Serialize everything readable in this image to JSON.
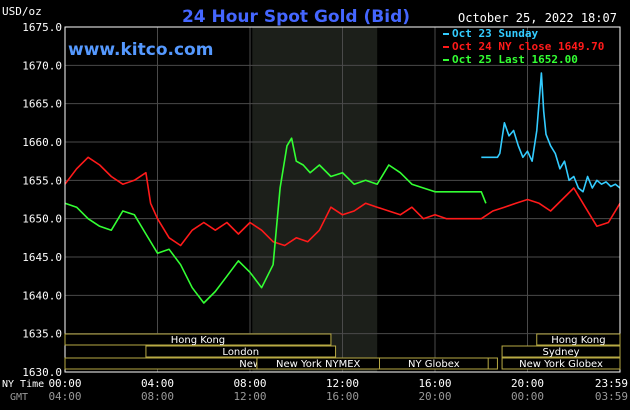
{
  "header": {
    "unit": "USD/oz",
    "title": "24 Hour Spot Gold (Bid)",
    "timestamp": "October 25, 2022 18:07",
    "website": "www.kitco.com"
  },
  "legend": [
    {
      "label": "Oct 23 Sunday",
      "color": "#33ccff"
    },
    {
      "label": "Oct 24 NY close 1649.70",
      "color": "#ff1a1a"
    },
    {
      "label": "Oct 25 Last 1652.00",
      "color": "#33ff33"
    }
  ],
  "colors": {
    "background": "#000000",
    "grid": "#4a4a4a",
    "axis_text": "#ffffff",
    "title": "#4466ff",
    "website": "#5599ff",
    "session_fill": "#1c1f1a",
    "session_border": "#b8aa44",
    "session_text": "#ffffff"
  },
  "time_rows": {
    "ny_label": "NY Time",
    "gmt_label": "GMT",
    "ny_ticks": [
      "00:00",
      "04:00",
      "08:00",
      "12:00",
      "16:00",
      "20:00",
      "23:59"
    ],
    "gmt_ticks": [
      "04:00",
      "08:00",
      "12:00",
      "16:00",
      "20:00",
      "00:00",
      "03:59"
    ]
  },
  "sessions": [
    {
      "label": "Hong Kong",
      "start": 0,
      "end": 11.5,
      "row": 0
    },
    {
      "label": "London",
      "start": 3.5,
      "end": 11.7,
      "row": 1
    },
    {
      "label": "New York Globex",
      "start": 0,
      "end": 18.7,
      "row": 2
    },
    {
      "label": "New York NYMEX",
      "start": 8.3,
      "end": 13.6,
      "row": 2
    },
    {
      "label": "NY Globex",
      "start": 13.6,
      "end": 18.3,
      "row": 2
    },
    {
      "label": "Hong Kong",
      "start": 20.4,
      "end": 24,
      "row": 0
    },
    {
      "label": "Sydney",
      "start": 18.9,
      "end": 24,
      "row": 1
    },
    {
      "label": "New York Globex",
      "start": 18.9,
      "end": 24,
      "row": 2
    }
  ],
  "chart_data": {
    "type": "line",
    "title": "24 Hour Spot Gold (Bid)",
    "ylabel": "USD/oz",
    "xlabel": "NY Time",
    "xlim": [
      0,
      24
    ],
    "ylim": [
      1630,
      1675
    ],
    "yticks": [
      "1675.0",
      "1670.0",
      "1665.0",
      "1660.0",
      "1655.0",
      "1650.0",
      "1645.0",
      "1640.0",
      "1635.0",
      "1630.0"
    ],
    "grid": true,
    "legend_position": "top-right",
    "shaded_region": [
      8.1,
      13.5
    ],
    "series": [
      {
        "name": "Oct 23 Sunday",
        "color": "#33ccff",
        "x": [
          18.0,
          18.7,
          18.8,
          19.0,
          19.2,
          19.4,
          19.6,
          19.8,
          20.0,
          20.2,
          20.4,
          20.6,
          20.7,
          20.8,
          21.0,
          21.2,
          21.4,
          21.6,
          21.8,
          22.0,
          22.2,
          22.4,
          22.6,
          22.8,
          23.0,
          23.2,
          23.4,
          23.6,
          23.8,
          24.0
        ],
        "y": [
          1658.0,
          1658.0,
          1658.5,
          1662.5,
          1660.8,
          1661.5,
          1659.5,
          1658.0,
          1658.8,
          1657.5,
          1661.5,
          1669.0,
          1664.0,
          1661.0,
          1659.5,
          1658.5,
          1656.5,
          1657.5,
          1655.0,
          1655.5,
          1654.0,
          1653.5,
          1655.5,
          1654.0,
          1655.0,
          1654.5,
          1654.8,
          1654.2,
          1654.5,
          1654.0
        ]
      },
      {
        "name": "Oct 24 NY close 1649.70",
        "color": "#ff1a1a",
        "x": [
          0.0,
          0.5,
          1.0,
          1.5,
          2.0,
          2.5,
          3.0,
          3.5,
          3.7,
          4.0,
          4.5,
          5.0,
          5.5,
          6.0,
          6.5,
          7.0,
          7.5,
          8.0,
          8.5,
          9.0,
          9.5,
          10.0,
          10.5,
          11.0,
          11.5,
          12.0,
          12.5,
          13.0,
          13.5,
          14.0,
          14.5,
          15.0,
          15.5,
          16.0,
          16.5,
          17.0,
          17.5,
          18.0,
          18.5,
          19.0,
          19.5,
          20.0,
          20.5,
          21.0,
          21.5,
          22.0,
          22.5,
          23.0,
          23.5,
          24.0
        ],
        "y": [
          1654.5,
          1656.5,
          1658.0,
          1657.0,
          1655.5,
          1654.5,
          1655.0,
          1656.0,
          1652.0,
          1650.0,
          1647.5,
          1646.5,
          1648.5,
          1649.5,
          1648.5,
          1649.5,
          1648.0,
          1649.5,
          1648.5,
          1647.0,
          1646.5,
          1647.5,
          1647.0,
          1648.5,
          1651.5,
          1650.5,
          1651.0,
          1652.0,
          1651.5,
          1651.0,
          1650.5,
          1651.5,
          1650.0,
          1650.5,
          1650.0,
          1650.0,
          1650.0,
          1650.0,
          1651.0,
          1651.5,
          1652.0,
          1652.5,
          1652.0,
          1651.0,
          1652.5,
          1654.0,
          1651.5,
          1649.0,
          1649.5,
          1652.0
        ]
      },
      {
        "name": "Oct 25 Last 1652.00",
        "color": "#33ff33",
        "x": [
          0.0,
          0.5,
          1.0,
          1.5,
          2.0,
          2.5,
          3.0,
          3.5,
          4.0,
          4.5,
          5.0,
          5.5,
          6.0,
          6.5,
          7.0,
          7.5,
          8.0,
          8.5,
          9.0,
          9.3,
          9.6,
          9.8,
          10.0,
          10.3,
          10.6,
          11.0,
          11.5,
          12.0,
          12.5,
          13.0,
          13.5,
          14.0,
          14.5,
          15.0,
          15.5,
          16.0,
          16.5,
          17.0,
          17.5,
          18.0,
          18.2
        ],
        "y": [
          1652.0,
          1651.5,
          1650.0,
          1649.0,
          1648.5,
          1651.0,
          1650.5,
          1648.0,
          1645.5,
          1646.0,
          1644.0,
          1641.0,
          1639.0,
          1640.5,
          1642.5,
          1644.5,
          1643.0,
          1641.0,
          1644.0,
          1654.0,
          1659.5,
          1660.5,
          1657.5,
          1657.0,
          1656.0,
          1657.0,
          1655.5,
          1656.0,
          1654.5,
          1655.0,
          1654.5,
          1657.0,
          1656.0,
          1654.5,
          1654.0,
          1653.5,
          1653.5,
          1653.5,
          1653.5,
          1653.5,
          1652.0
        ]
      }
    ]
  }
}
